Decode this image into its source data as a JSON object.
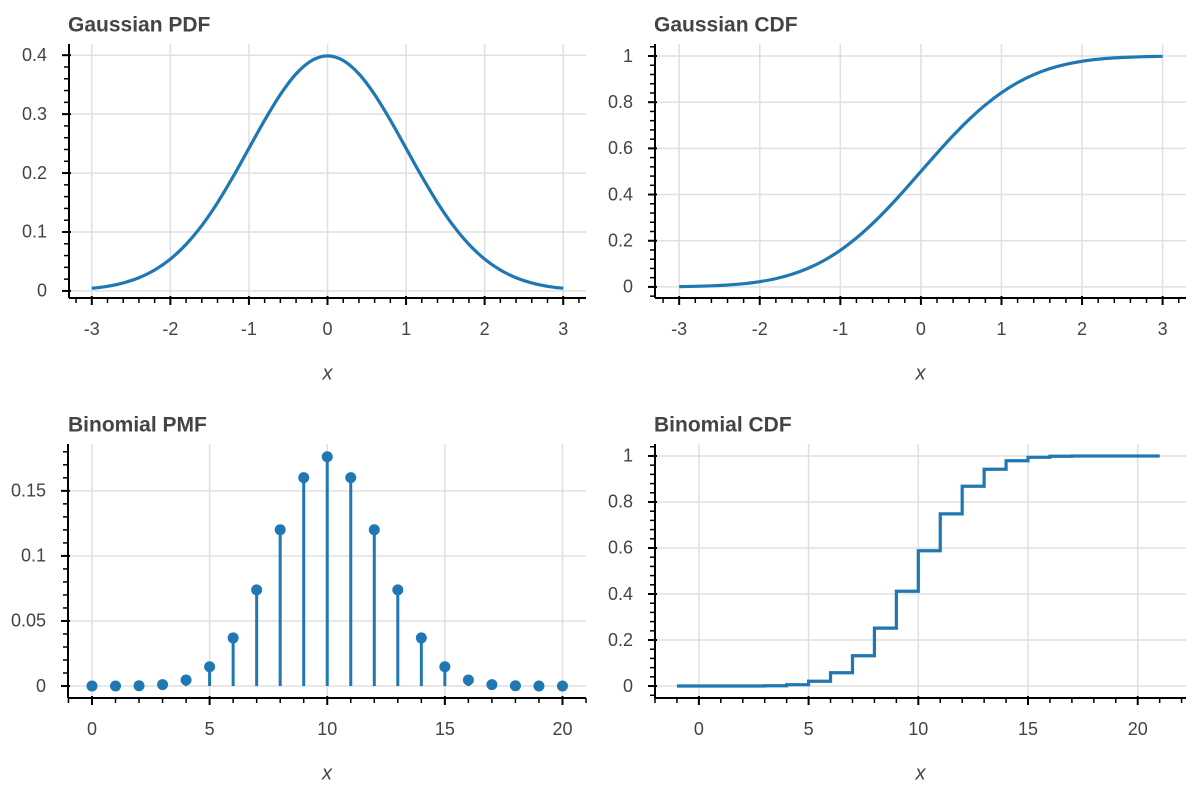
{
  "colors": {
    "line": "#1f77b4",
    "grid": "#e0e0e0",
    "axis": "#000000",
    "text": "#444444"
  },
  "chart_data": [
    {
      "type": "line",
      "title": "Gaussian PDF",
      "xlabel": "x",
      "ylabel": "",
      "xlim": [
        -3.29,
        3.29
      ],
      "ylim": [
        -0.012,
        0.419
      ],
      "xticks": [
        -3,
        -2,
        -1,
        0,
        1,
        2,
        3
      ],
      "xtick_labels": [
        "-3",
        "-2",
        "-1",
        "0",
        "1",
        "2",
        "3"
      ],
      "yticks": [
        0,
        0.1,
        0.2,
        0.3,
        0.4
      ],
      "ytick_labels": [
        "0",
        "0.1",
        "0.2",
        "0.3",
        "0.4"
      ],
      "grid": true,
      "x": [
        -3,
        -2.8,
        -2.6,
        -2.4,
        -2.2,
        -2,
        -1.8,
        -1.6,
        -1.4,
        -1.2,
        -1,
        -0.8,
        -0.6,
        -0.4,
        -0.2,
        0,
        0.2,
        0.4,
        0.6,
        0.8,
        1,
        1.2,
        1.4,
        1.6,
        1.8,
        2,
        2.2,
        2.4,
        2.6,
        2.8,
        3
      ],
      "y": [
        0.0044,
        0.0079,
        0.0136,
        0.0224,
        0.0355,
        0.054,
        0.079,
        0.1109,
        0.1497,
        0.1942,
        0.242,
        0.2897,
        0.3332,
        0.3683,
        0.391,
        0.3989,
        0.391,
        0.3683,
        0.3332,
        0.2897,
        0.242,
        0.1942,
        0.1497,
        0.1109,
        0.079,
        0.054,
        0.0355,
        0.0224,
        0.0136,
        0.0079,
        0.0044
      ]
    },
    {
      "type": "line",
      "title": "Gaussian CDF",
      "xlabel": "x",
      "ylabel": "",
      "xlim": [
        -3.3,
        3.29
      ],
      "ylim": [
        -0.048,
        1.052
      ],
      "xticks": [
        -3,
        -2,
        -1,
        0,
        1,
        2,
        3
      ],
      "xtick_labels": [
        "-3",
        "-2",
        "-1",
        "0",
        "1",
        "2",
        "3"
      ],
      "yticks": [
        0,
        0.2,
        0.4,
        0.6,
        0.8,
        1
      ],
      "ytick_labels": [
        "0",
        "0.2",
        "0.4",
        "0.6",
        "0.8",
        "1"
      ],
      "grid": true,
      "x": [
        -3,
        -2.8,
        -2.6,
        -2.4,
        -2.2,
        -2,
        -1.8,
        -1.6,
        -1.4,
        -1.2,
        -1,
        -0.8,
        -0.6,
        -0.4,
        -0.2,
        0,
        0.2,
        0.4,
        0.6,
        0.8,
        1,
        1.2,
        1.4,
        1.6,
        1.8,
        2,
        2.2,
        2.4,
        2.6,
        2.8,
        3
      ],
      "y": [
        0.0013,
        0.0026,
        0.0047,
        0.0082,
        0.0139,
        0.0228,
        0.0359,
        0.0548,
        0.0808,
        0.1151,
        0.1587,
        0.2119,
        0.2743,
        0.3446,
        0.4207,
        0.5,
        0.5793,
        0.6554,
        0.7257,
        0.7881,
        0.8413,
        0.8849,
        0.9192,
        0.9452,
        0.9641,
        0.9772,
        0.9861,
        0.9918,
        0.9953,
        0.9974,
        0.9987
      ]
    },
    {
      "type": "stem",
      "title": "Binomial PMF",
      "xlabel": "x",
      "ylabel": "",
      "xlim": [
        -1.02,
        21.0
      ],
      "ylim": [
        -0.0092,
        0.186
      ],
      "xticks": [
        0,
        5,
        10,
        15,
        20
      ],
      "xtick_labels": [
        "0",
        "5",
        "10",
        "15",
        "20"
      ],
      "yticks": [
        0,
        0.05,
        0.1,
        0.15
      ],
      "ytick_labels": [
        "0",
        "0.05",
        "0.1",
        "0.15"
      ],
      "grid": true,
      "x": [
        0,
        1,
        2,
        3,
        4,
        5,
        6,
        7,
        8,
        9,
        10,
        11,
        12,
        13,
        14,
        15,
        16,
        17,
        18,
        19,
        20
      ],
      "y": [
        1e-06,
        1.9e-05,
        0.000181,
        0.001087,
        0.004621,
        0.014786,
        0.036964,
        0.073929,
        0.120134,
        0.160179,
        0.176197,
        0.160179,
        0.120134,
        0.073929,
        0.036964,
        0.014786,
        0.004621,
        0.001087,
        0.000181,
        1.9e-05,
        1e-06
      ]
    },
    {
      "type": "step",
      "title": "Binomial CDF",
      "xlabel": "x",
      "ylabel": "",
      "xlim": [
        -2.0,
        22.2
      ],
      "ylim": [
        -0.052,
        1.052
      ],
      "xticks": [
        0,
        5,
        10,
        15,
        20
      ],
      "xtick_labels": [
        "0",
        "5",
        "10",
        "15",
        "20"
      ],
      "yticks": [
        0,
        0.2,
        0.4,
        0.6,
        0.8,
        1
      ],
      "ytick_labels": [
        "0",
        "0.2",
        "0.4",
        "0.6",
        "0.8",
        "1"
      ],
      "grid": true,
      "x": [
        -1,
        0,
        1,
        2,
        3,
        4,
        5,
        6,
        7,
        8,
        9,
        10,
        11,
        12,
        13,
        14,
        15,
        16,
        17,
        18,
        19,
        20,
        21
      ],
      "y": [
        0,
        1e-06,
        2e-05,
        0.000201,
        0.001288,
        0.005909,
        0.020695,
        0.057659,
        0.131588,
        0.251722,
        0.411901,
        0.588099,
        0.748278,
        0.868412,
        0.942341,
        0.979305,
        0.994091,
        0.998712,
        0.999799,
        0.99998,
        0.999999,
        1,
        1
      ]
    }
  ]
}
